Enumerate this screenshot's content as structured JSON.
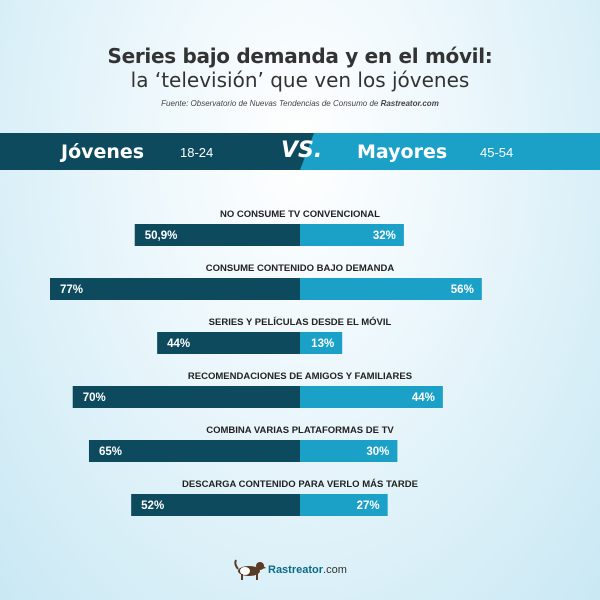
{
  "header": {
    "title_line1": "Series bajo demanda y en el móvil:",
    "title_line2": "la ‘televisión’ que ven los jóvenes",
    "source_prefix": "Fuente: Observatorio de Nuevas Tendencias de Consumo de ",
    "source_brand": "Rastreator.com"
  },
  "versus": {
    "group1": "Jóvenes",
    "age1": "18-24",
    "vs": "VS.",
    "group2": "Mayores",
    "age2": "45-54"
  },
  "colors": {
    "jovenes": "#0d4a5e",
    "mayores": "#1ba0c8",
    "label": "#222222"
  },
  "chart_data": {
    "type": "bar",
    "orientation": "diverging-horizontal",
    "categories": [
      "NO CONSUME TV CONVENCIONAL",
      "CONSUME CONTENIDO BAJO DEMANDA",
      "SERIES Y PELÍCULAS DESDE EL MÓVIL",
      "RECOMENDACIONES DE AMIGOS Y FAMILIARES",
      "COMBINA VARIAS PLATAFORMAS DE TV",
      "DESCARGA CONTENIDO PARA VERLO MÁS TARDE"
    ],
    "series": [
      {
        "name": "Jóvenes",
        "values": [
          50.9,
          77,
          44,
          70,
          65,
          52
        ],
        "labels": [
          "50,9%",
          "77%",
          "44%",
          "70%",
          "65%",
          "52%"
        ]
      },
      {
        "name": "Mayores",
        "values": [
          32,
          56,
          13,
          44,
          30,
          27
        ],
        "labels": [
          "32%",
          "56%",
          "13%",
          "44%",
          "30%",
          "27%"
        ]
      }
    ],
    "xlim": [
      0,
      77
    ],
    "legend": "top"
  },
  "footer": {
    "logo_main": "Rastreator",
    "logo_suffix": ".com"
  }
}
